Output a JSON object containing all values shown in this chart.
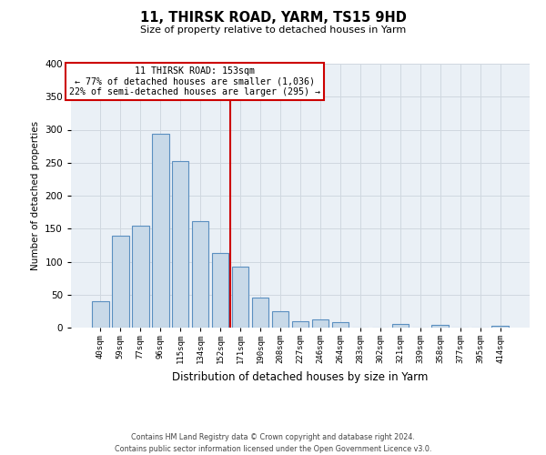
{
  "title": "11, THIRSK ROAD, YARM, TS15 9HD",
  "subtitle": "Size of property relative to detached houses in Yarm",
  "xlabel": "Distribution of detached houses by size in Yarm",
  "ylabel": "Number of detached properties",
  "bar_labels": [
    "40sqm",
    "59sqm",
    "77sqm",
    "96sqm",
    "115sqm",
    "134sqm",
    "152sqm",
    "171sqm",
    "190sqm",
    "208sqm",
    "227sqm",
    "246sqm",
    "264sqm",
    "283sqm",
    "302sqm",
    "321sqm",
    "339sqm",
    "358sqm",
    "377sqm",
    "395sqm",
    "414sqm"
  ],
  "bar_values": [
    40,
    139,
    155,
    294,
    253,
    162,
    113,
    92,
    46,
    25,
    10,
    13,
    8,
    0,
    0,
    5,
    0,
    4,
    0,
    0,
    3
  ],
  "bar_color": "#c8d9e8",
  "bar_edge_color": "#5a8fc0",
  "vline_x": 6.5,
  "vline_color": "#cc0000",
  "annotation_title": "11 THIRSK ROAD: 153sqm",
  "annotation_line1": "← 77% of detached houses are smaller (1,036)",
  "annotation_line2": "22% of semi-detached houses are larger (295) →",
  "annotation_box_color": "#cc0000",
  "annotation_bg": "#ffffff",
  "ylim": [
    0,
    400
  ],
  "yticks": [
    0,
    50,
    100,
    150,
    200,
    250,
    300,
    350,
    400
  ],
  "grid_color": "#d0d8e0",
  "bg_color": "#eaf0f6",
  "footer_line1": "Contains HM Land Registry data © Crown copyright and database right 2024.",
  "footer_line2": "Contains public sector information licensed under the Open Government Licence v3.0."
}
